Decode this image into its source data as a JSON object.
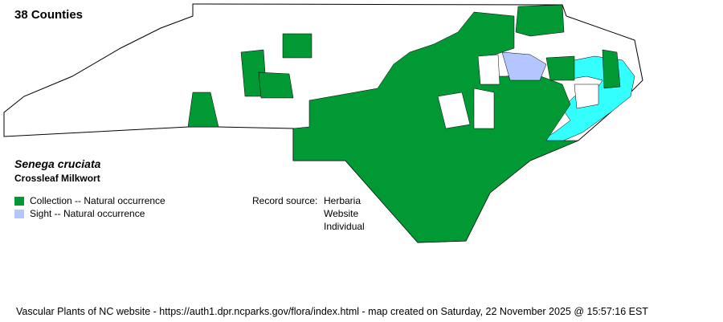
{
  "header": {
    "county_count": "38 Counties"
  },
  "species": {
    "scientific_name": "Senega cruciata",
    "common_name": "Crossleaf Milkwort"
  },
  "legend": [
    {
      "label": "Collection -- Natural occurrence",
      "color": "#009933"
    },
    {
      "label": "Sight -- Natural occurrence",
      "color": "#b3c6ff"
    }
  ],
  "record_source": {
    "label": "Record source:",
    "sources": [
      "Herbaria",
      "Website",
      "Individual"
    ]
  },
  "map_colors": {
    "unreported": "#ffffff",
    "water": "#33ffff",
    "border": "#000000"
  },
  "footer": "Vascular Plants of NC website - https://auth1.dpr.ncparks.gov/flora/index.html - map created on Saturday, 22 November 2025 @ 15:57:16 EST"
}
